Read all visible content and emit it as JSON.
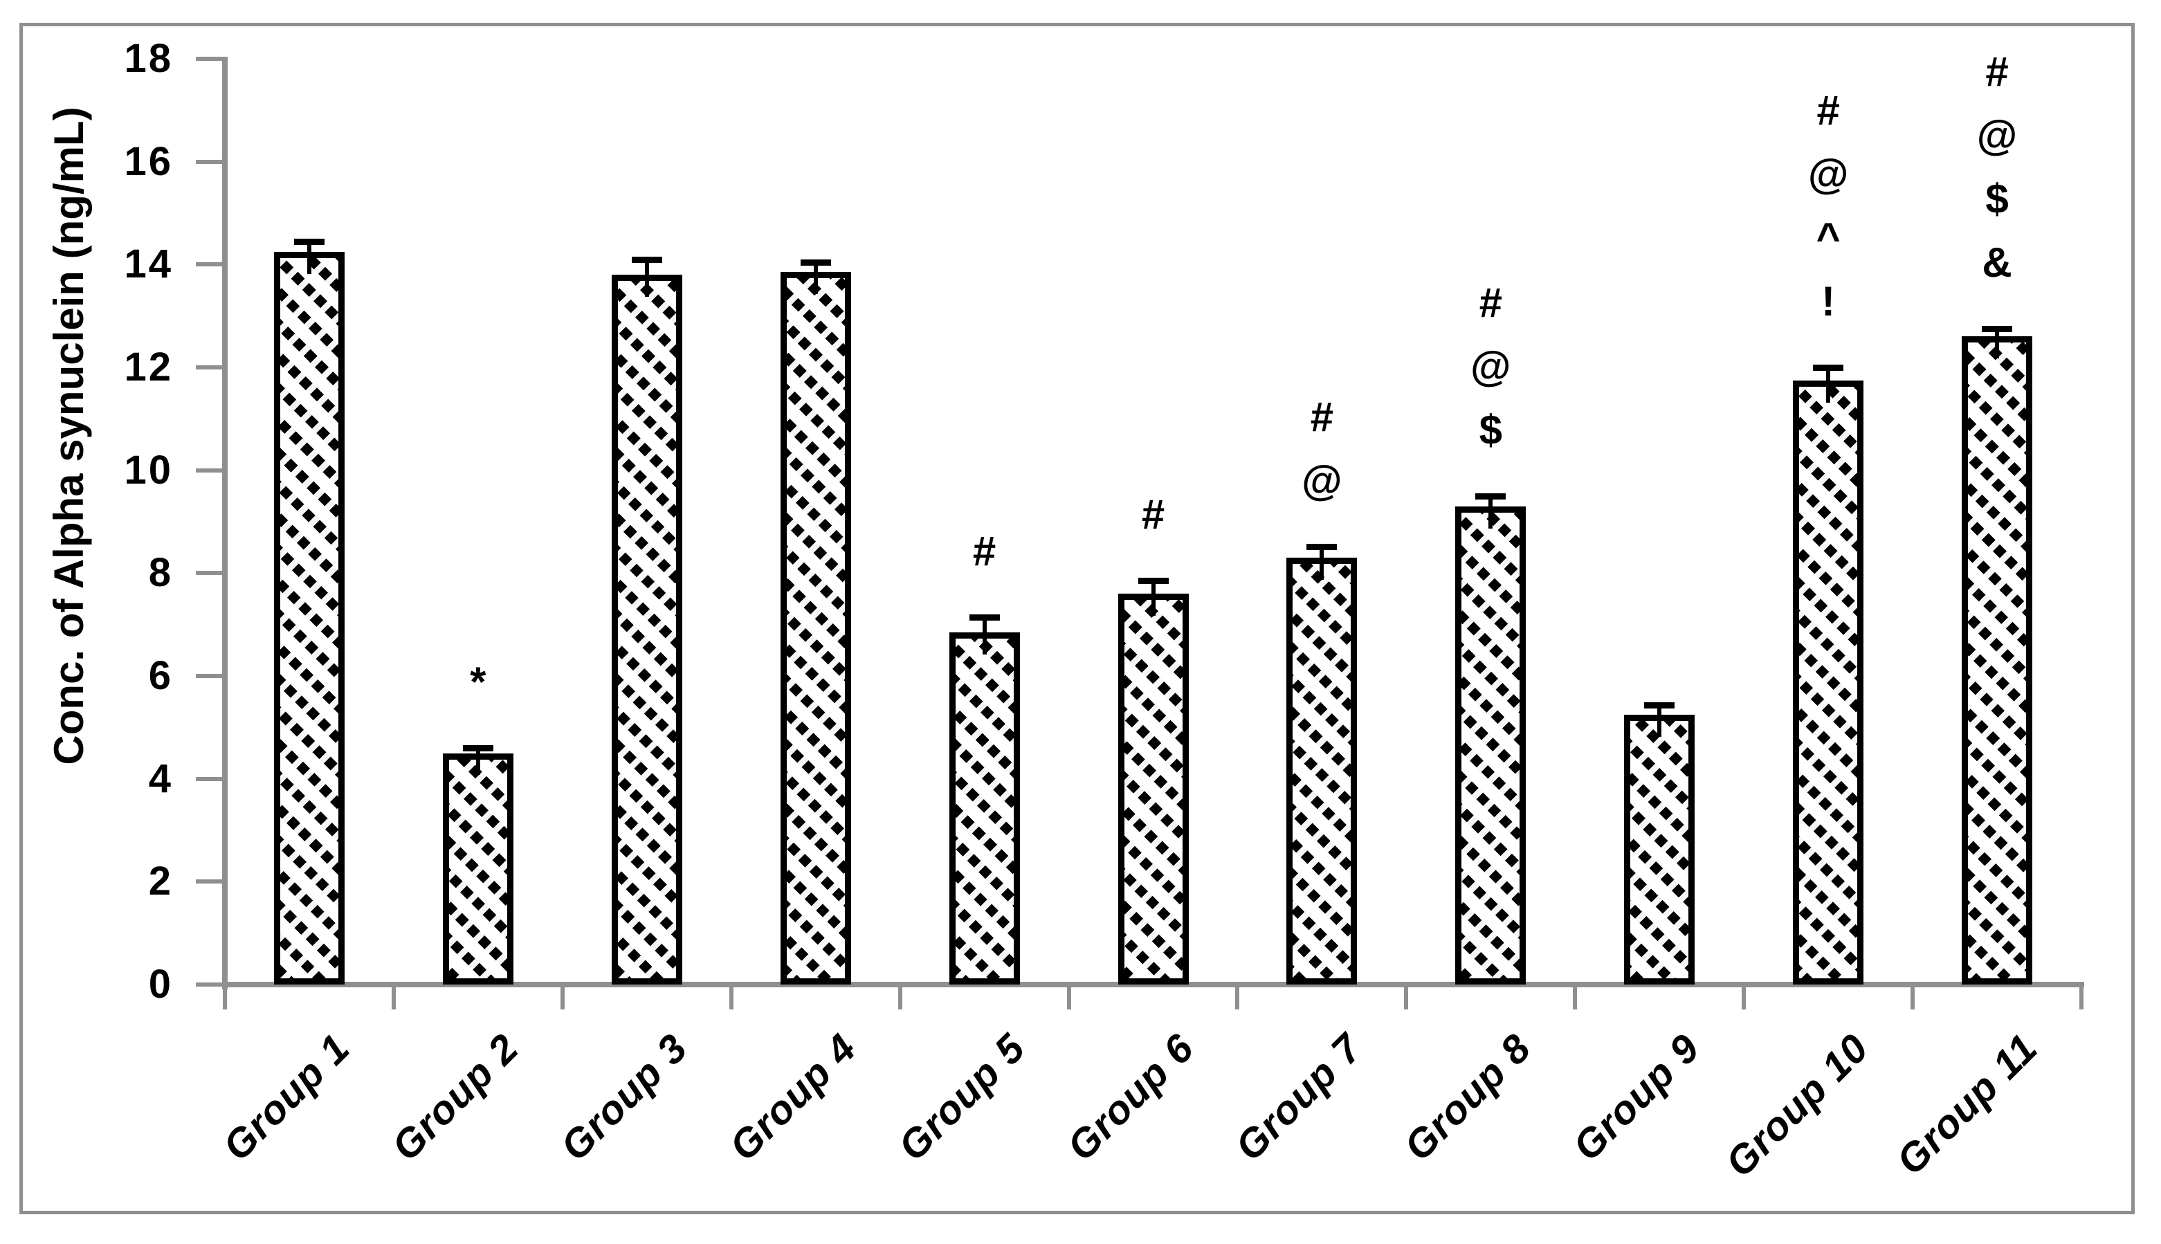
{
  "figure": {
    "background": "#ffffff",
    "frame_color": "#8f8f8f",
    "axis_color": "#8f8f8f",
    "bar_outline_color": "#000000",
    "bar_fill": "diagonal-hatch"
  },
  "chart_data": {
    "type": "bar",
    "title": "",
    "xlabel": "",
    "ylabel": "Conc. of Alpha synuclein (ng/mL)",
    "ylim": [
      0,
      18
    ],
    "yticks": [
      0,
      2,
      4,
      6,
      8,
      10,
      12,
      14,
      16,
      18
    ],
    "grid": false,
    "legend": "none",
    "categories": [
      "Group 1",
      "Group 2",
      "Group 3",
      "Group 4",
      "Group 5",
      "Group 6",
      "Group 7",
      "Group 8",
      "Group 9",
      "Group 10",
      "Group 11"
    ],
    "series": [
      {
        "name": "Conc. of Alpha synuclein",
        "values": [
          14.25,
          4.5,
          13.8,
          13.85,
          6.85,
          7.6,
          8.3,
          9.3,
          5.25,
          11.75,
          12.6
        ],
        "error_plus": [
          0.2,
          0.1,
          0.3,
          0.2,
          0.3,
          0.25,
          0.22,
          0.2,
          0.18,
          0.25,
          0.15
        ]
      }
    ],
    "significance_markers": [
      [],
      [
        "*"
      ],
      [],
      [],
      [
        "#"
      ],
      [
        "#"
      ],
      [
        "#",
        "@"
      ],
      [
        "#",
        "@",
        "$"
      ],
      [],
      [
        "#",
        "@",
        "^",
        "!"
      ],
      [
        "#",
        "@",
        "$",
        "&"
      ]
    ]
  }
}
